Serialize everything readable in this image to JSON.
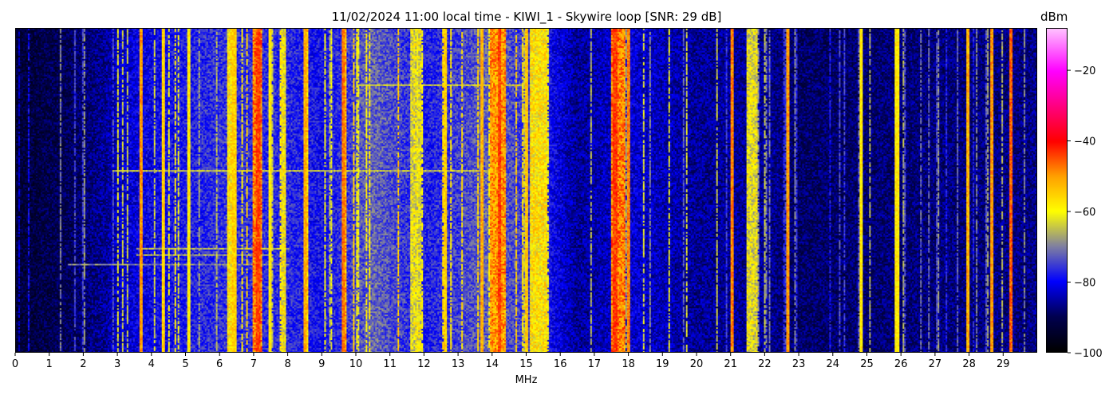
{
  "chart_data": {
    "type": "heatmap",
    "title": "11/02/2024 11:00 local time - KIWI_1 - Skywire loop [SNR: 29 dB]",
    "xlabel": "MHz",
    "x_ticks": [
      0,
      1,
      2,
      3,
      4,
      5,
      6,
      7,
      8,
      9,
      10,
      11,
      12,
      13,
      14,
      15,
      16,
      17,
      18,
      19,
      20,
      21,
      22,
      23,
      24,
      25,
      26,
      27,
      28,
      29
    ],
    "xlim": [
      0,
      30
    ],
    "colorbar": {
      "label": "dBm",
      "range": [
        -100,
        -8
      ],
      "ticks": [
        -100,
        -80,
        -60,
        -40,
        -20
      ],
      "stops": [
        {
          "value": -100,
          "color": "#000000"
        },
        {
          "value": -90,
          "color": "#000050"
        },
        {
          "value": -80,
          "color": "#0000ff"
        },
        {
          "value": -70,
          "color": "#8080a0"
        },
        {
          "value": -60,
          "color": "#ffff00"
        },
        {
          "value": -50,
          "color": "#ffa000"
        },
        {
          "value": -40,
          "color": "#ff0000"
        },
        {
          "value": -30,
          "color": "#ff0080"
        },
        {
          "value": -20,
          "color": "#ff00ff"
        },
        {
          "value": -8,
          "color": "#ffc0ff"
        }
      ]
    },
    "noise_floor": [
      {
        "mhz": 0,
        "dbm": -93
      },
      {
        "mhz": 1.5,
        "dbm": -90
      },
      {
        "mhz": 2.6,
        "dbm": -86
      },
      {
        "mhz": 3,
        "dbm": -83
      },
      {
        "mhz": 4,
        "dbm": -80
      },
      {
        "mhz": 5,
        "dbm": -78
      },
      {
        "mhz": 6,
        "dbm": -76
      },
      {
        "mhz": 8,
        "dbm": -77
      },
      {
        "mhz": 9,
        "dbm": -79
      },
      {
        "mhz": 10.5,
        "dbm": -72
      },
      {
        "mhz": 12,
        "dbm": -78
      },
      {
        "mhz": 14,
        "dbm": -72
      },
      {
        "mhz": 15.5,
        "dbm": -78
      },
      {
        "mhz": 16.5,
        "dbm": -86
      },
      {
        "mhz": 18,
        "dbm": -82
      },
      {
        "mhz": 20,
        "dbm": -86
      },
      {
        "mhz": 22,
        "dbm": -86
      },
      {
        "mhz": 23,
        "dbm": -89
      },
      {
        "mhz": 26,
        "dbm": -88
      },
      {
        "mhz": 30,
        "dbm": -87
      }
    ],
    "bands": [
      {
        "start": 6.2,
        "end": 6.35,
        "dbm": -58
      },
      {
        "start": 6.95,
        "end": 7.2,
        "dbm": -48
      },
      {
        "start": 7.8,
        "end": 7.9,
        "dbm": -60
      },
      {
        "start": 8.45,
        "end": 8.6,
        "dbm": -55
      },
      {
        "start": 9.55,
        "end": 9.7,
        "dbm": -52
      },
      {
        "start": 11.6,
        "end": 11.9,
        "dbm": -62
      },
      {
        "start": 13.9,
        "end": 14.4,
        "dbm": -50
      },
      {
        "start": 15.1,
        "end": 15.6,
        "dbm": -58
      },
      {
        "start": 17.5,
        "end": 17.9,
        "dbm": -48
      },
      {
        "start": 21.45,
        "end": 21.8,
        "dbm": -62
      }
    ],
    "carriers": [
      {
        "mhz": 3.65,
        "dbm": -50
      },
      {
        "mhz": 4.3,
        "dbm": -55
      },
      {
        "mhz": 5.05,
        "dbm": -58
      },
      {
        "mhz": 6.4,
        "dbm": -55
      },
      {
        "mhz": 7.1,
        "dbm": -45
      },
      {
        "mhz": 7.45,
        "dbm": -58
      },
      {
        "mhz": 8.5,
        "dbm": -52
      },
      {
        "mhz": 9.6,
        "dbm": -48
      },
      {
        "mhz": 12.6,
        "dbm": -55
      },
      {
        "mhz": 13.7,
        "dbm": -52
      },
      {
        "mhz": 14.2,
        "dbm": -44
      },
      {
        "mhz": 15.0,
        "dbm": -54
      },
      {
        "mhz": 17.6,
        "dbm": -44
      },
      {
        "mhz": 18.0,
        "dbm": -48
      },
      {
        "mhz": 21.05,
        "dbm": -48
      },
      {
        "mhz": 22.7,
        "dbm": -50
      },
      {
        "mhz": 24.85,
        "dbm": -58
      },
      {
        "mhz": 25.9,
        "dbm": -58
      },
      {
        "mhz": 28.0,
        "dbm": -52
      },
      {
        "mhz": 28.7,
        "dbm": -50
      },
      {
        "mhz": 29.25,
        "dbm": -46
      }
    ],
    "interference_rows": [
      {
        "row": 0.17,
        "start": 10.1,
        "end": 15.0,
        "dbm": -62
      },
      {
        "row": 0.44,
        "start": 2.8,
        "end": 14.0,
        "dbm": -64
      },
      {
        "row": 0.68,
        "start": 3.5,
        "end": 8.0,
        "dbm": -66
      },
      {
        "row": 0.7,
        "start": 3.5,
        "end": 7.5,
        "dbm": -66
      },
      {
        "row": 0.73,
        "start": 1.5,
        "end": 8.0,
        "dbm": -70
      }
    ]
  }
}
